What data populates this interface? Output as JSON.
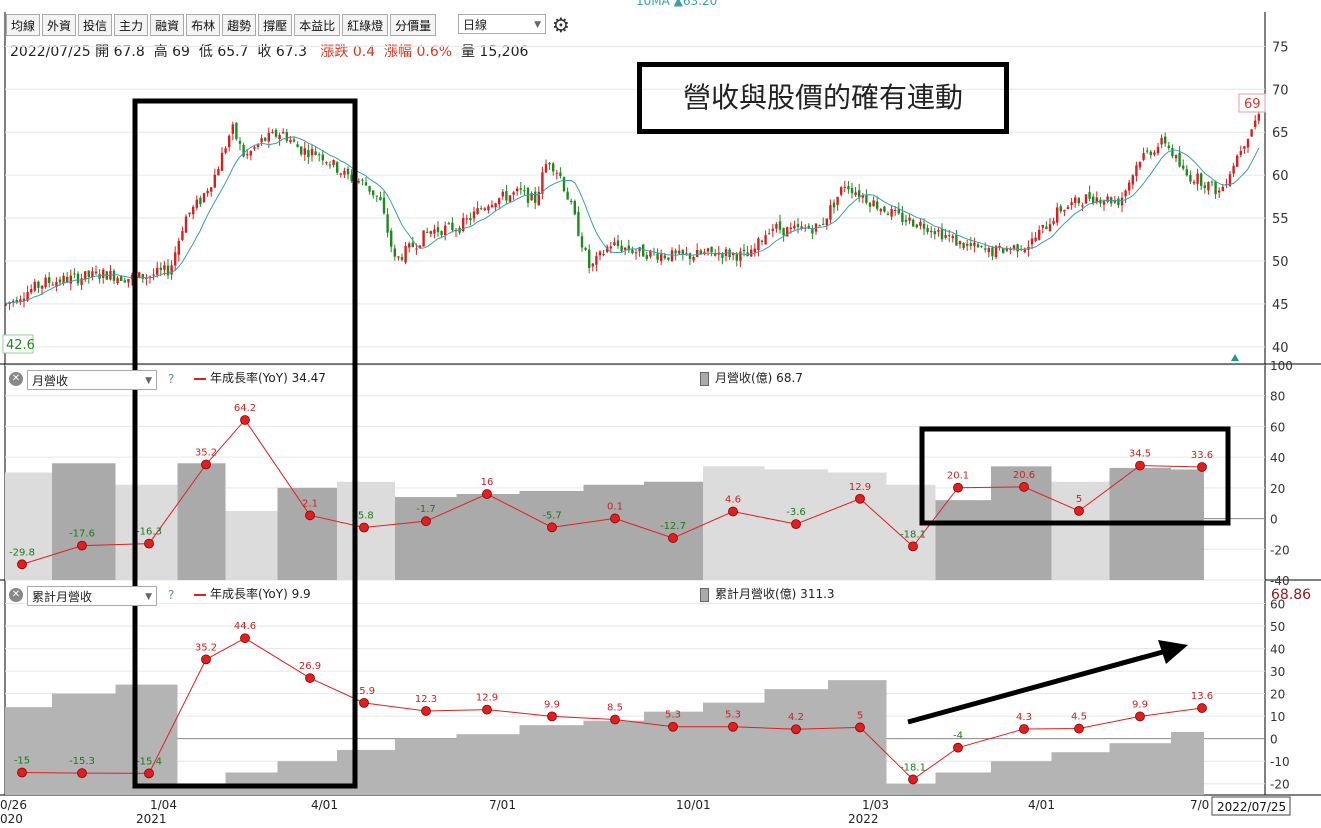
{
  "toolbar": {
    "items": [
      "均線",
      "外資",
      "投信",
      "主力",
      "融資",
      "布林",
      "趨勢",
      "撐壓",
      "本益比",
      "紅綠燈",
      "分價量"
    ],
    "period": "日線"
  },
  "top_ma_label": "10MA ▲63.20",
  "quote": {
    "date": "2022/07/25",
    "open_label": "開",
    "open": "67.8",
    "high_label": "高",
    "high": "69",
    "low_label": "低",
    "low": "65.7",
    "close_label": "收",
    "close": "67.3",
    "chg_label": "漲跌",
    "chg": "0.4",
    "pct_label": "漲幅",
    "pct": "0.6%",
    "vol_label": "量",
    "vol": "15,206"
  },
  "annotation": "營收與股價的確有連動",
  "panel2": {
    "selector": "月營收",
    "legend_line": "年成長率(YoY) 34.47",
    "legend_bar": "月營收(億) 68.7"
  },
  "panel3": {
    "selector": "累計月營收",
    "legend_line": "年成長率(YoY) 9.9",
    "legend_bar": "累計月營收(億) 311.3",
    "last_value": "68.86"
  },
  "colors": {
    "up": "#d81e1e",
    "down": "#1e8a1e",
    "ma": "#3a9fb0",
    "yoy": "#e02020",
    "bar": "#aaaaaa"
  },
  "chart_data": [
    {
      "type": "candlestick",
      "ylim": [
        38,
        79
      ],
      "yticks": [
        75,
        70,
        65,
        60,
        55,
        50,
        45,
        40
      ],
      "min_marker": "42.6",
      "max_marker": "69",
      "path": [
        [
          0,
          44.5
        ],
        [
          20,
          46
        ],
        [
          45,
          47.5
        ],
        [
          75,
          48
        ],
        [
          105,
          48.5
        ],
        [
          130,
          48
        ],
        [
          150,
          48.3
        ],
        [
          170,
          49
        ],
        [
          185,
          55
        ],
        [
          200,
          57
        ],
        [
          215,
          60
        ],
        [
          232,
          65.5
        ],
        [
          245,
          62
        ],
        [
          262,
          64
        ],
        [
          282,
          65
        ],
        [
          300,
          63
        ],
        [
          320,
          62.5
        ],
        [
          345,
          60
        ],
        [
          365,
          59
        ],
        [
          380,
          57
        ],
        [
          395,
          50
        ],
        [
          410,
          51.5
        ],
        [
          430,
          53.5
        ],
        [
          460,
          54
        ],
        [
          490,
          57
        ],
        [
          520,
          58
        ],
        [
          535,
          57
        ],
        [
          548,
          62
        ],
        [
          560,
          60
        ],
        [
          572,
          56
        ],
        [
          590,
          49
        ],
        [
          610,
          52
        ],
        [
          640,
          51
        ],
        [
          680,
          50.5
        ],
        [
          720,
          51
        ],
        [
          750,
          50.5
        ],
        [
          770,
          54
        ],
        [
          790,
          53.5
        ],
        [
          820,
          54
        ],
        [
          845,
          59
        ],
        [
          870,
          57
        ],
        [
          900,
          55
        ],
        [
          930,
          54
        ],
        [
          960,
          52
        ],
        [
          990,
          51
        ],
        [
          1030,
          52
        ],
        [
          1060,
          56
        ],
        [
          1090,
          57.5
        ],
        [
          1120,
          57
        ],
        [
          1140,
          62
        ],
        [
          1165,
          64
        ],
        [
          1185,
          60
        ],
        [
          1200,
          59.5
        ],
        [
          1220,
          58
        ],
        [
          1240,
          63
        ],
        [
          1258,
          67
        ]
      ],
      "ma_label": "10MA"
    },
    {
      "type": "bar+line",
      "ylim": [
        -40,
        100
      ],
      "yticks": [
        100,
        80,
        60,
        40,
        20,
        0,
        -20,
        -40
      ],
      "points": [
        -29.8,
        -17.6,
        -16.3,
        35.2,
        64.2,
        2.1,
        -5.8,
        -1.7,
        16,
        -5.7,
        0.1,
        -12.7,
        4.6,
        -3.6,
        12.9,
        -18.1,
        20.1,
        20.6,
        5,
        34.5,
        33.6
      ],
      "bars": [
        30,
        36,
        22,
        36,
        5,
        20,
        24,
        14,
        16,
        18,
        22,
        24,
        34,
        32,
        30,
        22,
        12,
        34,
        24,
        33,
        32
      ]
    },
    {
      "type": "bar+line",
      "ylim": [
        -25,
        70
      ],
      "yticks": [
        60,
        50,
        40,
        30,
        20,
        10,
        0,
        -10,
        -20
      ],
      "points": [
        -15,
        -15.3,
        -15.4,
        35.2,
        44.6,
        26.9,
        15.9,
        12.3,
        12.9,
        9.9,
        8.5,
        5.3,
        5.3,
        4.2,
        5,
        -18.1,
        -4,
        4.3,
        4.5,
        9.9,
        13.6
      ],
      "bars": [
        14,
        20,
        24,
        -20,
        -15,
        -10,
        -5,
        0,
        2,
        6,
        8,
        12,
        16,
        22,
        26,
        -20,
        -15,
        -10,
        -6,
        -2,
        3
      ]
    }
  ],
  "x_axis": {
    "labels": [
      "0/26",
      "1/04",
      "4/01",
      "7/01",
      "10/01",
      "1/03",
      "4/01",
      "7/0"
    ],
    "years": [
      "020",
      "2021",
      "2022"
    ],
    "cursor_date": "2022/07/25"
  }
}
